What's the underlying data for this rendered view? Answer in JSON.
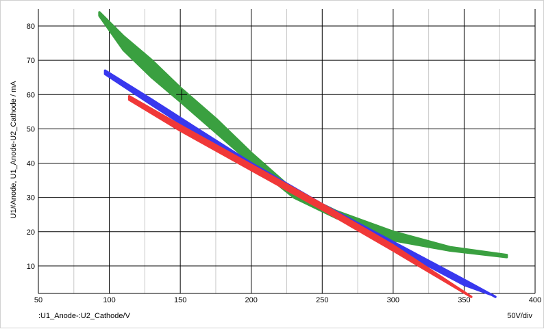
{
  "chart_data": {
    "type": "line",
    "xlabel": ":U1_Anode-:U2_Cathode/V",
    "ylabel": "U1#Anode, U1_Anode-U2_Cathode / mA",
    "scale_note": "50V/div",
    "xlim": [
      50,
      400
    ],
    "ylim": [
      2,
      85
    ],
    "x_ticks": [
      50,
      100,
      150,
      200,
      250,
      300,
      350,
      400
    ],
    "y_ticks": [
      10,
      20,
      30,
      40,
      50,
      60,
      70,
      80
    ],
    "x_minor_grid_step": 25,
    "grid": true,
    "cursor": {
      "x": 151,
      "y": 60
    },
    "series": [
      {
        "color": "#3aa040",
        "outbound": [
          [
            93,
            84
          ],
          [
            110,
            77
          ],
          [
            130,
            70
          ],
          [
            150,
            62
          ],
          [
            175,
            53
          ],
          [
            200,
            43
          ],
          [
            230,
            32
          ],
          [
            260,
            26
          ],
          [
            300,
            20
          ],
          [
            340,
            15.5
          ],
          [
            380,
            13.2
          ]
        ],
        "return": [
          [
            380,
            12.6
          ],
          [
            340,
            14.5
          ],
          [
            300,
            17.5
          ],
          [
            260,
            24
          ],
          [
            230,
            30
          ],
          [
            200,
            40
          ],
          [
            175,
            49
          ],
          [
            150,
            58
          ],
          [
            130,
            65
          ],
          [
            110,
            73
          ],
          [
            93,
            83
          ]
        ]
      },
      {
        "color": "#3838ee",
        "outbound": [
          [
            97,
            67
          ],
          [
            130,
            58.5
          ],
          [
            160,
            50.5
          ],
          [
            200,
            40
          ],
          [
            250,
            28
          ],
          [
            300,
            17
          ],
          [
            350,
            6
          ],
          [
            372,
            1
          ]
        ],
        "return": [
          [
            370,
            1.5
          ],
          [
            350,
            4.5
          ],
          [
            300,
            15.5
          ],
          [
            250,
            27
          ],
          [
            200,
            38.5
          ],
          [
            160,
            49
          ],
          [
            130,
            57
          ],
          [
            97,
            66
          ]
        ]
      },
      {
        "color": "#f03838",
        "outbound": [
          [
            114,
            59.5
          ],
          [
            150,
            51
          ],
          [
            200,
            39.5
          ],
          [
            250,
            28
          ],
          [
            300,
            16
          ],
          [
            355,
            1
          ]
        ],
        "return": [
          [
            353,
            1.5
          ],
          [
            300,
            14.5
          ],
          [
            250,
            26.5
          ],
          [
            200,
            38
          ],
          [
            150,
            49.5
          ],
          [
            114,
            58.5
          ]
        ]
      }
    ]
  }
}
